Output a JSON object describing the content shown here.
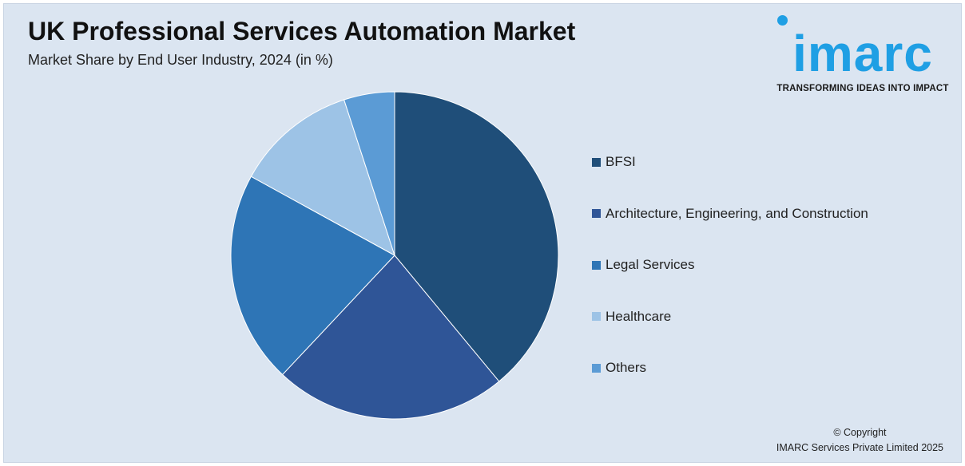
{
  "header": {
    "title": "UK Professional Services Automation Market",
    "subtitle": "Market Share by End User Industry, 2024 (in %)"
  },
  "logo": {
    "wordmark": "imarc",
    "tagline": "TRANSFORMING IDEAS INTO IMPACT",
    "color": "#1f9fe4"
  },
  "chart_data": {
    "type": "pie",
    "title": "UK Professional Services Automation Market",
    "subtitle": "Market Share by End User Industry, 2024 (in %)",
    "legend_position": "right",
    "start": "top-clockwise",
    "slices": [
      {
        "label": "BFSI",
        "value": 39,
        "color": "#1f4e79"
      },
      {
        "label": "Architecture, Engineering, and Construction",
        "value": 23,
        "color": "#2f5597"
      },
      {
        "label": "Legal Services",
        "value": 21,
        "color": "#2e75b6"
      },
      {
        "label": "Healthcare",
        "value": 12,
        "color": "#9dc3e6"
      },
      {
        "label": "Others",
        "value": 5,
        "color": "#5b9bd5"
      }
    ]
  },
  "footer": {
    "copyright_line1": "© Copyright",
    "copyright_line2": "IMARC Services Private Limited 2025"
  }
}
